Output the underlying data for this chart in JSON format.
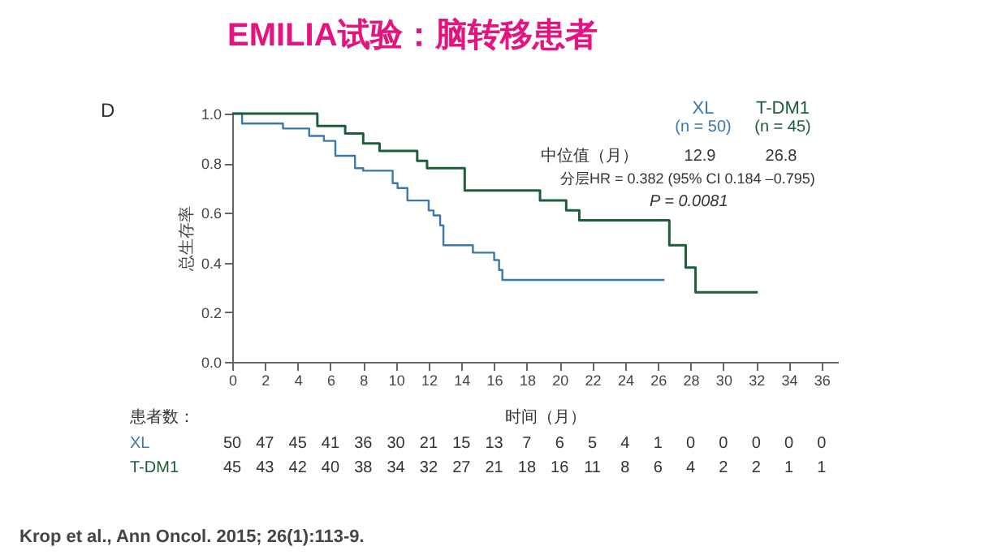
{
  "chart_data": {
    "type": "step",
    "title": "EMILIA试验：脑转移患者",
    "xlabel": "时间（月）",
    "ylabel": "总生存率",
    "series": [
      {
        "name": "XL",
        "color": "#3a78b0",
        "x": [
          0,
          0.6,
          3.1,
          4.7,
          5.6,
          6.3,
          7.5,
          8.0,
          9.8,
          10.1,
          10.7,
          12.0,
          12.3,
          12.7,
          12.9,
          14.7,
          16.0,
          16.3,
          16.5,
          26.4
        ],
        "values": [
          1.0,
          0.96,
          0.94,
          0.91,
          0.89,
          0.83,
          0.78,
          0.77,
          0.72,
          0.7,
          0.65,
          0.61,
          0.59,
          0.55,
          0.47,
          0.44,
          0.41,
          0.37,
          0.33,
          0.33
        ]
      },
      {
        "name": "T-DM1",
        "color": "#1d5e3a",
        "x": [
          0,
          5.2,
          6.9,
          8.0,
          9.0,
          11.3,
          11.9,
          14.2,
          18.8,
          20.4,
          21.2,
          26.7,
          27.7,
          28.3,
          32.1
        ],
        "values": [
          1.0,
          0.95,
          0.92,
          0.88,
          0.85,
          0.81,
          0.78,
          0.69,
          0.65,
          0.61,
          0.57,
          0.47,
          0.38,
          0.28,
          0.28
        ]
      }
    ],
    "xlim": [
      0,
      37
    ],
    "xticks": [
      0,
      2,
      4,
      6,
      8,
      10,
      12,
      14,
      16,
      18,
      20,
      22,
      24,
      26,
      28,
      30,
      32,
      34,
      36
    ],
    "ylim": [
      0,
      1.0
    ],
    "yticks": [
      {
        "value": 0,
        "label": "0.0"
      },
      0.2,
      0.4,
      0.6,
      0.8,
      {
        "value": 1,
        "label": "1.0"
      }
    ],
    "grid": false,
    "legend": "top right",
    "line_style": "solid",
    "marker": "none",
    "annotations": [
      "D",
      "(n = 50)",
      "(n = 45)",
      "中位值（月）",
      "12.9",
      "26.8",
      "分层HR = 0.382 (95% CI 0.184 –0.795)",
      "P = 0.0081",
      "患者数：",
      "50 47 45 41 36 30 21 15 13 7 6 5 4 1 0 0 0 0 0",
      "45 43 42 40 38 34 32 27 21 18 16 11 8 6 4 2 2 1 1",
      "Krop et al., Ann Oncol. 2015; 26(1):113-9."
    ]
  }
}
